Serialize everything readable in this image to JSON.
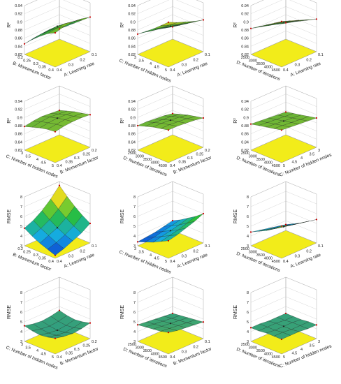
{
  "chart_data": [
    {
      "type": "surface",
      "zlabel": "R²",
      "xlabel": "A: Learning rate",
      "ylabel": "B: Momentum factor",
      "zticks": [
        "0.82",
        "0.84",
        "0.86",
        "0.88",
        "0.9",
        "0.92",
        "0.94"
      ],
      "zlim": [
        0.82,
        0.94
      ],
      "xticks": [
        "0.1",
        "0.2",
        "0.3",
        "0.4"
      ],
      "yticks": [
        "0.2",
        "0.25",
        "0.3",
        "0.35",
        "0.4"
      ],
      "zgrid": [
        [
          0.845,
          0.86,
          0.875,
          0.89,
          0.905
        ],
        [
          0.85,
          0.866,
          0.882,
          0.896,
          0.91
        ],
        [
          0.852,
          0.87,
          0.886,
          0.9,
          0.912
        ],
        [
          0.85,
          0.868,
          0.884,
          0.898,
          0.91
        ],
        [
          0.846,
          0.864,
          0.88,
          0.894,
          0.904
        ]
      ],
      "colorscale": "greens-red-top"
    },
    {
      "type": "surface",
      "zlabel": "R²",
      "xlabel": "A: Learning rate",
      "ylabel": "C: Number of hidden nodes",
      "zticks": [
        "0.82",
        "0.84",
        "0.86",
        "0.88",
        "0.9",
        "0.92",
        "0.94"
      ],
      "zlim": [
        0.82,
        0.94
      ],
      "xticks": [
        "0.1",
        "0.2",
        "0.3",
        "0.4"
      ],
      "yticks": [
        "3",
        "3.5",
        "4",
        "4.5",
        "5"
      ],
      "zgrid": [
        [
          0.85,
          0.862,
          0.874,
          0.886,
          0.898
        ],
        [
          0.856,
          0.868,
          0.88,
          0.892,
          0.904
        ],
        [
          0.862,
          0.874,
          0.886,
          0.898,
          0.912
        ],
        [
          0.866,
          0.878,
          0.892,
          0.906,
          0.92
        ],
        [
          0.87,
          0.884,
          0.898,
          0.914,
          0.93
        ]
      ],
      "colorscale": "greens-red-top"
    },
    {
      "type": "surface",
      "zlabel": "R²",
      "xlabel": "A: Learning rate",
      "ylabel": "D: Number of iterations",
      "zticks": [
        "0.82",
        "0.84",
        "0.86",
        "0.88",
        "0.9",
        "0.92",
        "0.94"
      ],
      "zlim": [
        0.82,
        0.94
      ],
      "xticks": [
        "0.1",
        "0.2",
        "0.3",
        "0.4"
      ],
      "yticks": [
        "2500",
        "3000",
        "3500",
        "4000",
        "4500"
      ],
      "zgrid": [
        [
          0.86,
          0.87,
          0.88,
          0.89,
          0.9
        ],
        [
          0.866,
          0.876,
          0.888,
          0.898,
          0.908
        ],
        [
          0.872,
          0.884,
          0.896,
          0.906,
          0.916
        ],
        [
          0.878,
          0.89,
          0.902,
          0.914,
          0.924
        ],
        [
          0.884,
          0.896,
          0.908,
          0.92,
          0.932
        ]
      ],
      "colorscale": "greens-red-top"
    },
    {
      "type": "surface",
      "zlabel": "R²",
      "xlabel": "B: Momentum factor",
      "ylabel": "C: Number of hidden nodes",
      "zticks": [
        "0.82",
        "0.84",
        "0.86",
        "0.88",
        "0.9",
        "0.92",
        "0.94"
      ],
      "zlim": [
        0.82,
        0.94
      ],
      "xticks": [
        "0.2",
        "0.25",
        "0.3",
        "0.35",
        "0.4"
      ],
      "yticks": [
        "3",
        "3.5",
        "4",
        "4.5",
        "5"
      ],
      "zgrid": [
        [
          0.88,
          0.886,
          0.892,
          0.896,
          0.9
        ],
        [
          0.882,
          0.888,
          0.894,
          0.898,
          0.902
        ],
        [
          0.884,
          0.89,
          0.895,
          0.899,
          0.902
        ],
        [
          0.882,
          0.888,
          0.893,
          0.897,
          0.9
        ],
        [
          0.878,
          0.884,
          0.89,
          0.894,
          0.896
        ]
      ],
      "colorscale": "greens"
    },
    {
      "type": "surface",
      "zlabel": "R²",
      "xlabel": "B: Momentum factor",
      "ylabel": "D: Number of iterations",
      "zticks": [
        "0.82",
        "0.84",
        "0.86",
        "0.88",
        "0.9",
        "0.92",
        "0.94"
      ],
      "zlim": [
        0.82,
        0.94
      ],
      "xticks": [
        "0.2",
        "0.25",
        "0.3",
        "0.35",
        "0.4"
      ],
      "yticks": [
        "2500",
        "3000",
        "3500",
        "4000",
        "4500"
      ],
      "zgrid": [
        [
          0.872,
          0.878,
          0.884,
          0.888,
          0.892
        ],
        [
          0.876,
          0.882,
          0.888,
          0.892,
          0.896
        ],
        [
          0.878,
          0.884,
          0.89,
          0.894,
          0.898
        ],
        [
          0.88,
          0.886,
          0.892,
          0.896,
          0.9
        ],
        [
          0.88,
          0.886,
          0.892,
          0.896,
          0.9
        ]
      ],
      "colorscale": "greens"
    },
    {
      "type": "surface",
      "zlabel": "R²",
      "xlabel": "C: Number of hidden nodes",
      "ylabel": "D: Number of iterations",
      "zticks": [
        "0.82",
        "0.84",
        "0.86",
        "0.88",
        "0.9",
        "0.92",
        "0.94"
      ],
      "zlim": [
        0.82,
        0.94
      ],
      "xticks": [
        "3",
        "3.5",
        "4",
        "4.5",
        "5"
      ],
      "yticks": [
        "2500",
        "3000",
        "3500",
        "4000",
        "4500"
      ],
      "zgrid": [
        [
          0.876,
          0.88,
          0.884,
          0.888,
          0.892
        ],
        [
          0.878,
          0.882,
          0.886,
          0.89,
          0.894
        ],
        [
          0.88,
          0.884,
          0.888,
          0.892,
          0.896
        ],
        [
          0.882,
          0.886,
          0.89,
          0.894,
          0.898
        ],
        [
          0.884,
          0.888,
          0.892,
          0.896,
          0.9
        ]
      ],
      "colorscale": "greens"
    },
    {
      "type": "surface",
      "zlabel": "RMSE",
      "xlabel": "A: Learning rate",
      "ylabel": "B: Momentum factor",
      "zticks": [
        "3",
        "4",
        "5",
        "6",
        "7",
        "8"
      ],
      "zlim": [
        3,
        8
      ],
      "xticks": [
        "0.1",
        "0.2",
        "0.3",
        "0.4"
      ],
      "yticks": [
        "0.2",
        "0.25",
        "0.3",
        "0.35",
        "0.4"
      ],
      "zgrid": [
        [
          7.6,
          6.8,
          6.1,
          5.5,
          5.0
        ],
        [
          6.6,
          5.9,
          5.3,
          4.8,
          4.4
        ],
        [
          5.8,
          5.2,
          4.7,
          4.3,
          4.0
        ],
        [
          5.2,
          4.7,
          4.3,
          3.9,
          3.6
        ],
        [
          4.8,
          4.3,
          3.9,
          3.6,
          3.3
        ]
      ],
      "colorscale": "jet"
    },
    {
      "type": "surface",
      "zlabel": "RMSE",
      "xlabel": "A: Learning rate",
      "ylabel": "C: Number of hidden nodes",
      "zticks": [
        "3",
        "4",
        "5",
        "6",
        "7",
        "8"
      ],
      "zlim": [
        3,
        8
      ],
      "xticks": [
        "0.1",
        "0.2",
        "0.3",
        "0.4"
      ],
      "yticks": [
        "3",
        "3.5",
        "4",
        "4.5",
        "5"
      ],
      "zgrid": [
        [
          4.0,
          4.4,
          4.9,
          5.4,
          6.0
        ],
        [
          3.8,
          4.2,
          4.6,
          5.1,
          5.6
        ],
        [
          3.6,
          4.0,
          4.4,
          4.8,
          5.3
        ],
        [
          3.5,
          3.8,
          4.2,
          4.6,
          5.0
        ],
        [
          3.4,
          3.7,
          4.0,
          4.4,
          4.8
        ]
      ],
      "colorscale": "jet"
    },
    {
      "type": "surface",
      "zlabel": "RMSE",
      "xlabel": "A: Learning rate",
      "ylabel": "D: Number of iterations",
      "zticks": [
        "3",
        "4",
        "5",
        "6",
        "7",
        "8"
      ],
      "zlim": [
        3,
        8
      ],
      "xticks": [
        "0.1",
        "0.2",
        "0.3",
        "0.4"
      ],
      "yticks": [
        "2500",
        "3000",
        "3500",
        "4000",
        "4500"
      ],
      "zgrid": [
        [
          3.6,
          4.0,
          4.4,
          4.9,
          5.4
        ],
        [
          3.8,
          4.2,
          4.6,
          5.1,
          5.6
        ],
        [
          4.0,
          4.4,
          4.8,
          5.3,
          5.8
        ],
        [
          4.2,
          4.6,
          5.0,
          5.5,
          6.0
        ],
        [
          4.4,
          4.8,
          5.2,
          5.7,
          6.3
        ]
      ],
      "colorscale": "jet"
    },
    {
      "type": "surface",
      "zlabel": "RMSE",
      "xlabel": "B: Momentum factor",
      "ylabel": "C: Number of hidden nodes",
      "zticks": [
        "3",
        "4",
        "5",
        "6",
        "7",
        "8"
      ],
      "zlim": [
        3,
        8
      ],
      "xticks": [
        "0.2",
        "0.25",
        "0.3",
        "0.35",
        "0.4"
      ],
      "yticks": [
        "3",
        "3.5",
        "4",
        "4.5",
        "5"
      ],
      "zgrid": [
        [
          4.6,
          4.4,
          4.3,
          4.4,
          4.6
        ],
        [
          4.4,
          4.2,
          4.1,
          4.2,
          4.4
        ],
        [
          4.3,
          4.1,
          4.0,
          4.1,
          4.3
        ],
        [
          4.4,
          4.2,
          4.1,
          4.2,
          4.4
        ],
        [
          4.6,
          4.4,
          4.3,
          4.4,
          4.6
        ]
      ],
      "colorscale": "greens-mid"
    },
    {
      "type": "surface",
      "zlabel": "RMSE",
      "xlabel": "B: Momentum factor",
      "ylabel": "D: Number of iterations",
      "zticks": [
        "3",
        "4",
        "5",
        "6",
        "7",
        "8"
      ],
      "zlim": [
        3,
        8
      ],
      "xticks": [
        "0.1",
        "0.2",
        "0.3",
        "0.4"
      ],
      "yticks": [
        "2500",
        "3000",
        "3500",
        "4000",
        "4500"
      ],
      "zgrid": [
        [
          4.3,
          4.4,
          4.5,
          4.6,
          4.7
        ],
        [
          4.4,
          4.5,
          4.6,
          4.7,
          4.8
        ],
        [
          4.5,
          4.6,
          4.7,
          4.8,
          4.9
        ],
        [
          4.6,
          4.7,
          4.8,
          4.9,
          5.0
        ],
        [
          4.7,
          4.8,
          4.9,
          5.0,
          5.2
        ]
      ],
      "colorscale": "greens-mid"
    },
    {
      "type": "surface",
      "zlabel": "RMSE",
      "xlabel": "C: Number of hidden nodes",
      "ylabel": "D: Number of iterations",
      "zticks": [
        "3",
        "4",
        "5",
        "6",
        "7",
        "8"
      ],
      "zlim": [
        3,
        8
      ],
      "xticks": [
        "3",
        "3.5",
        "4",
        "4.5",
        "5"
      ],
      "yticks": [
        "2500",
        "3000",
        "3500",
        "4000",
        "4500"
      ],
      "zgrid": [
        [
          4.3,
          4.3,
          4.3,
          4.4,
          4.4
        ],
        [
          4.3,
          4.3,
          4.4,
          4.4,
          4.4
        ],
        [
          4.3,
          4.4,
          4.4,
          4.4,
          4.5
        ],
        [
          4.4,
          4.4,
          4.4,
          4.5,
          4.5
        ],
        [
          4.4,
          4.4,
          4.5,
          4.5,
          4.5
        ]
      ],
      "colorscale": "greens-mid"
    }
  ]
}
